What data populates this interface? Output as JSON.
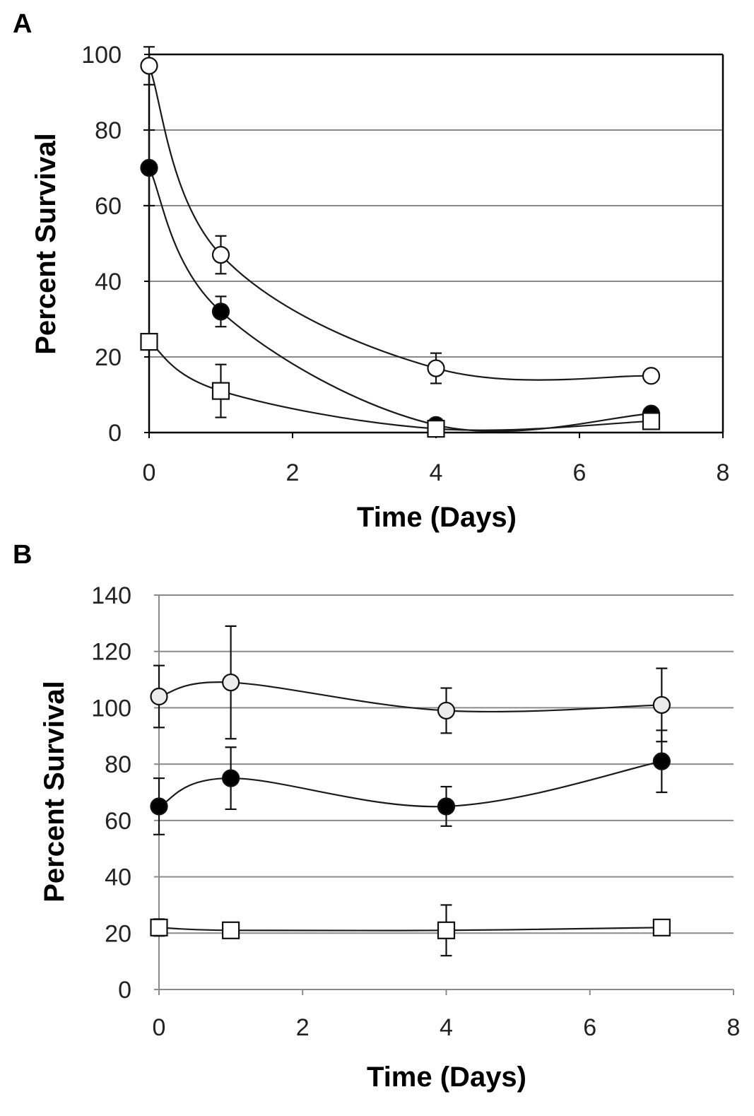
{
  "figure": {
    "panels": [
      "A",
      "B"
    ]
  },
  "chart_data": [
    {
      "panel": "A",
      "type": "line",
      "title": "",
      "xlabel": "Time (Days)",
      "ylabel": "Percent Survival",
      "xlim": [
        0,
        8
      ],
      "ylim": [
        0,
        100
      ],
      "xticks": [
        0,
        2,
        4,
        6,
        8
      ],
      "yticks": [
        0,
        20,
        40,
        60,
        80,
        100
      ],
      "grid": true,
      "frame": true,
      "x": [
        0,
        1,
        4,
        7
      ],
      "series": [
        {
          "name": "open-circle",
          "marker": "circle",
          "fill": "#ffffff",
          "values": [
            97,
            47,
            17,
            15
          ],
          "errors": [
            5,
            5,
            4,
            1
          ]
        },
        {
          "name": "filled-circle",
          "marker": "circle",
          "fill": "#000000",
          "values": [
            70,
            32,
            2,
            5
          ],
          "errors": [
            10,
            4,
            1,
            1
          ]
        },
        {
          "name": "open-square",
          "marker": "square",
          "fill": "#ffffff",
          "values": [
            24,
            11,
            1,
            3
          ],
          "errors": [
            2,
            7,
            1,
            1
          ]
        }
      ]
    },
    {
      "panel": "B",
      "type": "line",
      "title": "",
      "xlabel": "Time (Days)",
      "ylabel": "Percent Survival",
      "xlim": [
        0,
        8
      ],
      "ylim": [
        0,
        140
      ],
      "xticks": [
        0,
        2,
        4,
        6,
        8
      ],
      "yticks": [
        0,
        20,
        40,
        60,
        80,
        100,
        120,
        140
      ],
      "ytick_labels": [
        "0",
        "20",
        "40",
        "60",
        "80",
        "100",
        "120",
        "140"
      ],
      "grid": true,
      "frame": false,
      "x": [
        0,
        1,
        4,
        7
      ],
      "series": [
        {
          "name": "gray-circle",
          "marker": "circle",
          "fill": "#ececec",
          "values": [
            104,
            109,
            99,
            101
          ],
          "errors": [
            11,
            20,
            8,
            13
          ]
        },
        {
          "name": "filled-circle",
          "marker": "circle",
          "fill": "#000000",
          "values": [
            65,
            75,
            65,
            81
          ],
          "errors": [
            10,
            11,
            7,
            11
          ]
        },
        {
          "name": "open-square",
          "marker": "square",
          "fill": "#ffffff",
          "values": [
            22,
            21,
            21,
            22
          ],
          "errors": [
            3,
            1,
            9,
            1
          ]
        }
      ]
    }
  ]
}
